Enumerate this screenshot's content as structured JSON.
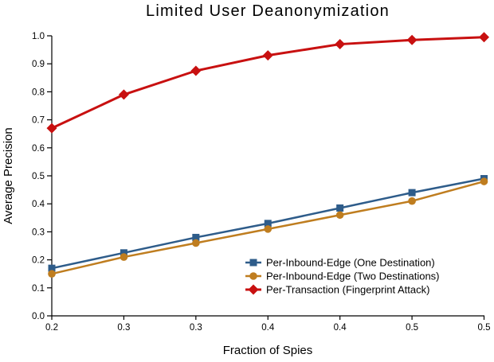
{
  "figure": {
    "background": "#ffffff",
    "text_color": "#000000"
  },
  "chart_data": {
    "type": "line",
    "title": "Limited User Deanonymization",
    "xlabel": "Fraction of Spies",
    "ylabel": "Average Precision",
    "xlim": [
      0.2,
      0.5
    ],
    "ylim": [
      0.0,
      1.0
    ],
    "grid": false,
    "legend_position": "lower-right-inside",
    "x": [
      0.2,
      0.25,
      0.3,
      0.35,
      0.4,
      0.45,
      0.5
    ],
    "x_tick_labels": [
      "0.2",
      "0.3",
      "0.3",
      "0.4",
      "0.4",
      "0.5",
      "0.5"
    ],
    "y_ticks": [
      0.0,
      0.1,
      0.2,
      0.3,
      0.4,
      0.5,
      0.6,
      0.7,
      0.8,
      0.9,
      1.0
    ],
    "y_tick_labels": [
      "0.0",
      "0.1",
      "0.2",
      "0.3",
      "0.4",
      "0.5",
      "0.6",
      "0.7",
      "0.8",
      "0.9",
      "1.0"
    ],
    "series": [
      {
        "name": "Per-Inbound-Edge (One Destination)",
        "marker": "square",
        "color": "#2e5c8a",
        "line_width": 2.5,
        "values": [
          0.17,
          0.225,
          0.28,
          0.33,
          0.385,
          0.44,
          0.49
        ]
      },
      {
        "name": "Per-Inbound-Edge (Two Destinations)",
        "marker": "circle",
        "color": "#bf7d1f",
        "line_width": 2.5,
        "values": [
          0.15,
          0.21,
          0.26,
          0.31,
          0.36,
          0.41,
          0.48
        ]
      },
      {
        "name": "Per-Transaction (Fingerprint Attack)",
        "marker": "diamond",
        "color": "#c81010",
        "line_width": 3,
        "values": [
          0.67,
          0.79,
          0.875,
          0.93,
          0.97,
          0.985,
          0.995
        ]
      }
    ]
  }
}
